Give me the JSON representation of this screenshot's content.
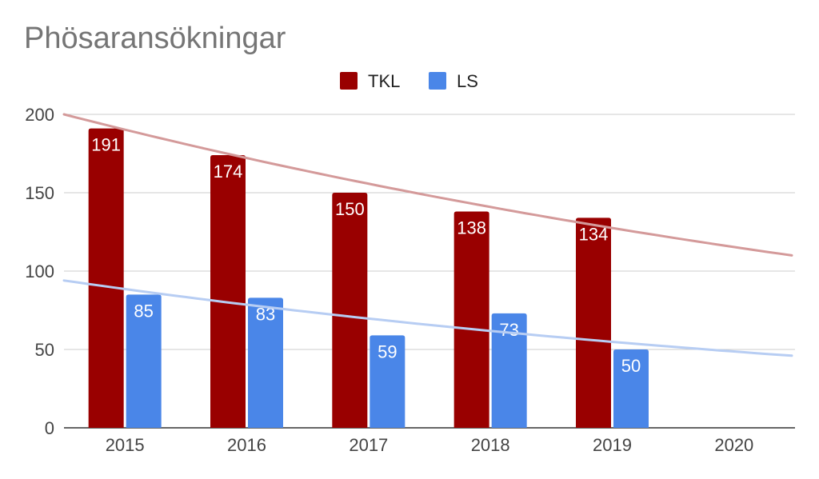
{
  "chart_data": {
    "type": "bar",
    "title": "Phösaransökningar",
    "xlabel": "",
    "ylabel": "",
    "categories": [
      "2015",
      "2016",
      "2017",
      "2018",
      "2019",
      "2020"
    ],
    "series": [
      {
        "name": "TKL",
        "color": "#990000",
        "values": [
          191,
          174,
          150,
          138,
          134,
          null
        ],
        "trendline": {
          "color": "#d49a9a",
          "start": 200,
          "end": 110
        }
      },
      {
        "name": "LS",
        "color": "#4a86e8",
        "values": [
          85,
          83,
          59,
          73,
          50,
          null
        ],
        "trendline": {
          "color": "#b7cdf3",
          "start": 94,
          "end": 46
        }
      }
    ],
    "ylim": [
      0,
      200
    ],
    "yticks": [
      0,
      50,
      100,
      150,
      200
    ],
    "grid": true,
    "legend_position": "top"
  }
}
